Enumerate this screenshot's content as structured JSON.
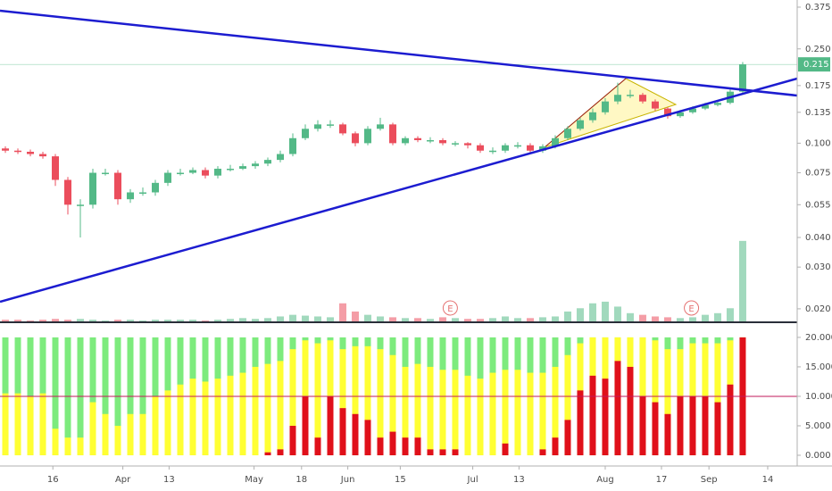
{
  "chart_data": [
    {
      "type": "candlestick",
      "xlim": [
        -0.43,
        63.36
      ],
      "ylim": [
        0.0177,
        0.402
      ],
      "log_scale": true,
      "grid": false,
      "yticks": [
        0.375,
        {
          "value": 0.25,
          "label": "0.250"
        },
        0.175,
        0.135,
        {
          "value": 0.1,
          "label": "0.100"
        },
        0.075,
        0.055,
        {
          "value": 0.04,
          "label": "0.040"
        },
        {
          "value": 0.03,
          "label": "0.030"
        },
        {
          "value": 0.02,
          "label": "0.020"
        }
      ],
      "up_color": "#53b987",
      "down_color": "#eb4d5c",
      "last_price": 0.215,
      "open": [
        0.095,
        0.093,
        0.092,
        0.09,
        0.088,
        0.07,
        0.055,
        0.055,
        0.075,
        0.075,
        0.058,
        0.062,
        0.062,
        0.068,
        0.075,
        0.075,
        0.077,
        0.073,
        0.078,
        0.078,
        0.08,
        0.082,
        0.085,
        0.09,
        0.105,
        0.115,
        0.12,
        0.12,
        0.11,
        0.1,
        0.115,
        0.12,
        0.1,
        0.105,
        0.103,
        0.103,
        0.1,
        0.1,
        0.098,
        0.093,
        0.093,
        0.098,
        0.098,
        0.093,
        0.097,
        0.105,
        0.115,
        0.125,
        0.135,
        0.15,
        0.16,
        0.16,
        0.15,
        0.14,
        0.13,
        0.135,
        0.14,
        0.145,
        0.148,
        0.165
      ],
      "high": [
        0.097,
        0.095,
        0.094,
        0.092,
        0.09,
        0.072,
        0.058,
        0.078,
        0.078,
        0.077,
        0.064,
        0.065,
        0.07,
        0.077,
        0.078,
        0.079,
        0.079,
        0.08,
        0.081,
        0.082,
        0.084,
        0.087,
        0.093,
        0.11,
        0.12,
        0.125,
        0.125,
        0.122,
        0.112,
        0.118,
        0.128,
        0.122,
        0.107,
        0.107,
        0.106,
        0.105,
        0.102,
        0.101,
        0.1,
        0.096,
        0.1,
        0.101,
        0.1,
        0.099,
        0.108,
        0.118,
        0.128,
        0.14,
        0.155,
        0.18,
        0.168,
        0.163,
        0.153,
        0.142,
        0.138,
        0.143,
        0.148,
        0.152,
        0.17,
        0.22
      ],
      "low": [
        0.091,
        0.09,
        0.088,
        0.086,
        0.066,
        0.05,
        0.04,
        0.053,
        0.073,
        0.055,
        0.056,
        0.06,
        0.06,
        0.066,
        0.073,
        0.074,
        0.071,
        0.071,
        0.076,
        0.077,
        0.078,
        0.08,
        0.083,
        0.088,
        0.103,
        0.112,
        0.116,
        0.108,
        0.097,
        0.098,
        0.113,
        0.098,
        0.098,
        0.101,
        0.1,
        0.098,
        0.097,
        0.095,
        0.091,
        0.09,
        0.091,
        0.095,
        0.091,
        0.091,
        0.095,
        0.103,
        0.113,
        0.122,
        0.132,
        0.146,
        0.155,
        0.147,
        0.137,
        0.127,
        0.128,
        0.133,
        0.138,
        0.143,
        0.146,
        0.163
      ],
      "close": [
        0.093,
        0.092,
        0.09,
        0.088,
        0.07,
        0.055,
        0.055,
        0.075,
        0.075,
        0.058,
        0.062,
        0.062,
        0.068,
        0.075,
        0.075,
        0.077,
        0.073,
        0.078,
        0.078,
        0.08,
        0.082,
        0.085,
        0.09,
        0.105,
        0.115,
        0.12,
        0.12,
        0.11,
        0.1,
        0.115,
        0.12,
        0.1,
        0.105,
        0.103,
        0.103,
        0.1,
        0.1,
        0.098,
        0.093,
        0.093,
        0.098,
        0.098,
        0.093,
        0.097,
        0.105,
        0.115,
        0.125,
        0.135,
        0.15,
        0.16,
        0.16,
        0.15,
        0.14,
        0.13,
        0.135,
        0.14,
        0.145,
        0.148,
        0.165,
        0.215
      ],
      "volume": [
        2,
        2,
        1,
        2,
        3,
        2,
        3,
        2,
        1,
        2,
        2,
        1,
        2,
        2,
        2,
        2,
        1,
        2,
        3,
        4,
        3,
        4,
        6,
        8,
        7,
        6,
        5,
        22,
        12,
        8,
        6,
        5,
        4,
        4,
        3,
        5,
        4,
        3,
        3,
        4,
        6,
        4,
        4,
        5,
        6,
        12,
        16,
        22,
        24,
        18,
        10,
        8,
        6,
        5,
        4,
        5,
        8,
        10,
        16,
        98
      ],
      "events": [
        {
          "label": "E",
          "x": 35.6
        },
        {
          "label": "E",
          "x": 54.9
        }
      ]
    },
    {
      "type": "bar",
      "xlim": [
        -0.43,
        63.36
      ],
      "ylim": [
        -0.76,
        21.2
      ],
      "yticks": [
        {
          "value": 0,
          "label": "0.000"
        },
        {
          "value": 5,
          "label": "5.000"
        },
        {
          "value": 10,
          "label": "10.000"
        },
        {
          "value": 15,
          "label": "15.000"
        },
        {
          "value": 20,
          "label": "20.000"
        }
      ],
      "background_color": "#7deb7d",
      "hline": 10,
      "hline_color": "#c2185b",
      "xticks": [
        {
          "value": 3.8,
          "label": "16"
        },
        {
          "value": 9.4,
          "label": "Apr"
        },
        {
          "value": 13.1,
          "label": "13"
        },
        {
          "value": 19.9,
          "label": "May"
        },
        {
          "value": 23.7,
          "label": "18"
        },
        {
          "value": 27.4,
          "label": "Jun"
        },
        {
          "value": 31.6,
          "label": "15"
        },
        {
          "value": 37.4,
          "label": "Jul"
        },
        {
          "value": 41.1,
          "label": "13"
        },
        {
          "value": 48.0,
          "label": "Aug"
        },
        {
          "value": 52.5,
          "label": "17"
        },
        {
          "value": 56.3,
          "label": "Sep"
        },
        {
          "value": 61.0,
          "label": "14"
        }
      ],
      "series": [
        {
          "color": "#ffff33",
          "values": [
            10.5,
            10.5,
            10,
            10.5,
            4.5,
            3,
            3,
            9,
            7,
            5,
            7,
            7,
            10,
            11,
            12,
            13,
            12.5,
            13,
            13.5,
            14,
            15,
            15.5,
            16,
            18,
            19.5,
            19,
            19.5,
            18,
            18.5,
            18.5,
            18,
            17,
            15,
            15.5,
            15,
            14.5,
            14.5,
            13.5,
            13,
            14,
            14.5,
            14.5,
            14,
            14,
            15,
            17,
            19,
            20,
            20,
            20,
            20,
            20,
            19.5,
            18,
            18,
            19,
            19,
            19,
            19.5,
            20
          ]
        },
        {
          "color": "#e0101a",
          "values": [
            0,
            0,
            0,
            0,
            0,
            0,
            0,
            0,
            0,
            0,
            0,
            0,
            0,
            0,
            0,
            0,
            0,
            0,
            0,
            0,
            0,
            0.5,
            1,
            5,
            10,
            3,
            10,
            8,
            7,
            6,
            3,
            4,
            3,
            3,
            1,
            1,
            1,
            0,
            0,
            0,
            2,
            0,
            0,
            1,
            3,
            6,
            11,
            13.5,
            13,
            16,
            15,
            10,
            9,
            7,
            10,
            10,
            10,
            9,
            12,
            20
          ]
        }
      ]
    }
  ]
}
